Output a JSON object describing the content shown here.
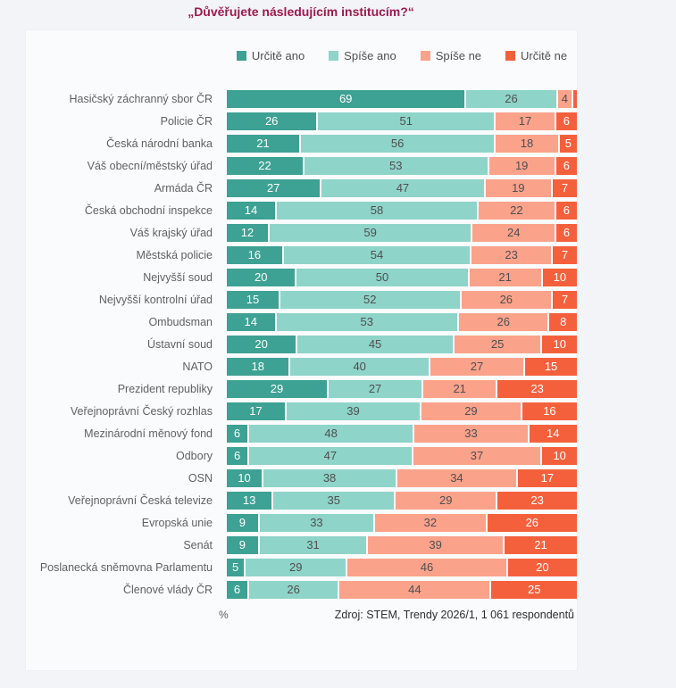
{
  "title": "„Důvěřujete následujícím institucím?“",
  "colors": {
    "title": "#9b1b4e",
    "panel_bg": "#fafbfd",
    "page_bg": "#f3f4f7",
    "label_text": "#616161",
    "dark_value_text": "#4f4f4f",
    "light_value_text": "#ffffff"
  },
  "legend": [
    {
      "label": "Určitě ano",
      "color": "#3da193"
    },
    {
      "label": "Spíše ano",
      "color": "#8ed4c9"
    },
    {
      "label": "Spíše ne",
      "color": "#fba28b"
    },
    {
      "label": "Určitě ne",
      "color": "#f5603c"
    }
  ],
  "footer": {
    "unit": "%",
    "source": "Zdroj: STEM, Trendy 2026/1, 1 061 respondentů"
  },
  "chart_data": {
    "type": "bar",
    "stacked": true,
    "orientation": "horizontal",
    "xlim": [
      0,
      100
    ],
    "grid": false,
    "legend_position": "top",
    "value_label_min": 4,
    "categories": [
      "Hasičský záchranný sbor ČR",
      "Policie ČR",
      "Česká národní banka",
      "Váš obecní/městský úřad",
      "Armáda ČR",
      "Česká obchodní inspekce",
      "Váš krajský úřad",
      "Městská policie",
      "Nejvyšší soud",
      "Nejvyšší kontrolní úřad",
      "Ombudsman",
      "Ústavní soud",
      "NATO",
      "Prezident republiky",
      "Veřejnoprávní Český rozhlas",
      "Mezinárodní měnový fond",
      "Odbory",
      "OSN",
      "Veřejnoprávní Česká televize",
      "Evropská unie",
      "Senát",
      "Poslanecká sněmovna Parlamentu",
      "Členové vlády ČR"
    ],
    "series": [
      {
        "name": "Určitě ano",
        "color": "#3da193",
        "text_color": "#ffffff",
        "values": [
          69,
          26,
          21,
          22,
          27,
          14,
          12,
          16,
          20,
          15,
          14,
          20,
          18,
          29,
          17,
          6,
          6,
          10,
          13,
          9,
          9,
          5,
          6
        ]
      },
      {
        "name": "Spíše ano",
        "color": "#8ed4c9",
        "text_color": "#4f4f4f",
        "values": [
          26,
          51,
          56,
          53,
          47,
          58,
          59,
          54,
          50,
          52,
          53,
          45,
          40,
          27,
          39,
          48,
          47,
          38,
          35,
          33,
          31,
          29,
          26
        ]
      },
      {
        "name": "Spíše ne",
        "color": "#fba28b",
        "text_color": "#4f4f4f",
        "values": [
          4,
          17,
          18,
          19,
          19,
          22,
          24,
          23,
          21,
          26,
          26,
          25,
          27,
          21,
          29,
          33,
          37,
          34,
          29,
          32,
          39,
          46,
          44
        ]
      },
      {
        "name": "Určitě ne",
        "color": "#f5603c",
        "text_color": "#ffffff",
        "values": [
          1,
          6,
          5,
          6,
          7,
          6,
          6,
          7,
          10,
          7,
          8,
          10,
          15,
          23,
          16,
          14,
          10,
          17,
          23,
          26,
          21,
          20,
          25
        ]
      }
    ]
  }
}
